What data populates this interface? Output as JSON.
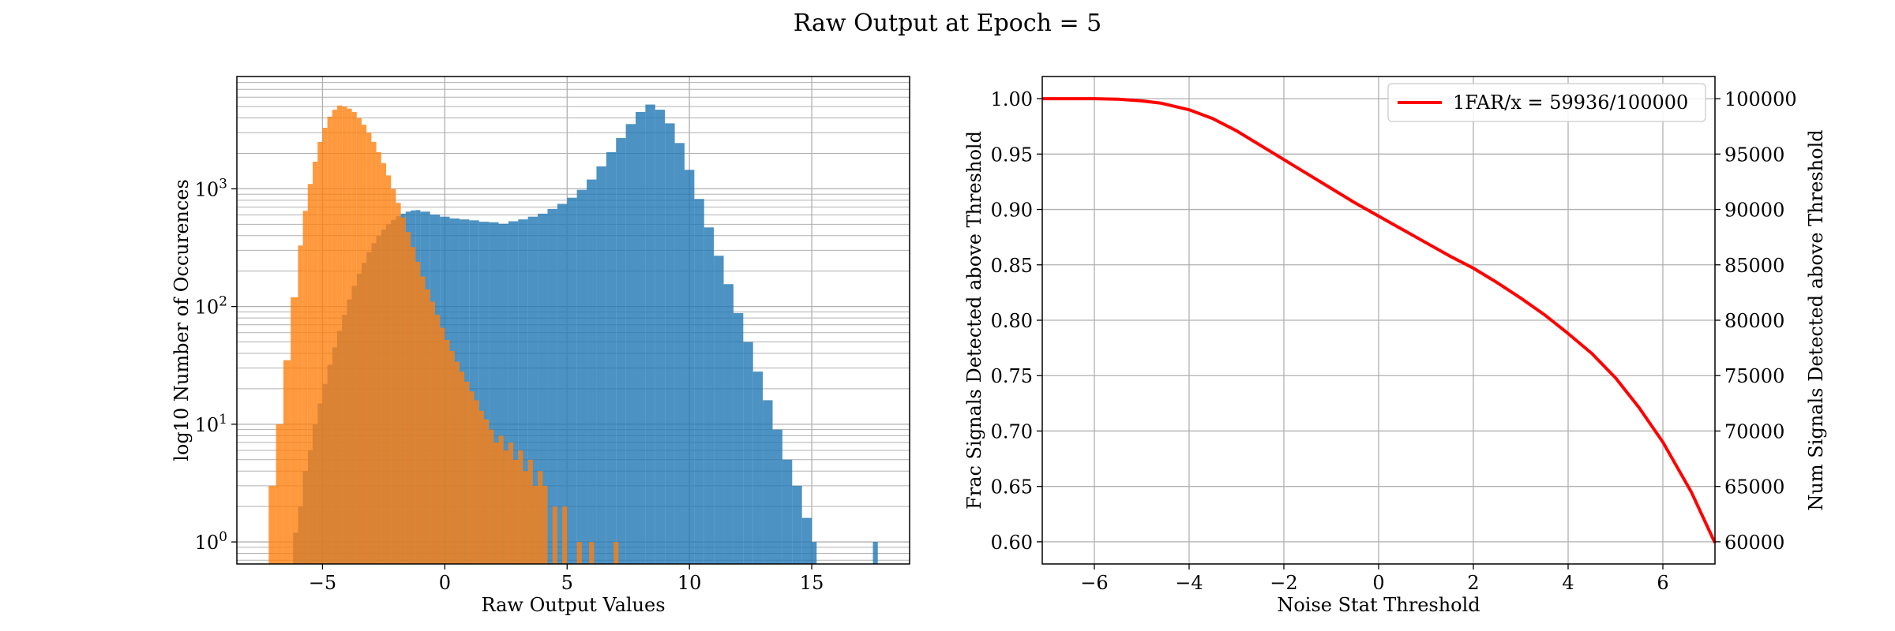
{
  "figure": {
    "title": "Raw Output at Epoch = 5"
  },
  "chart_data": [
    {
      "type": "bar",
      "subtype": "histogram",
      "xlabel": "Raw Output Values",
      "ylabel": "log10 Number of Occurences",
      "xlim": [
        -8.5,
        19
      ],
      "ylim": [
        0.65,
        9000
      ],
      "yscale": "log",
      "grid": true,
      "x_ticks": [
        -5,
        0,
        5,
        10,
        15
      ],
      "x_tick_labels": [
        "−5",
        "0",
        "5",
        "10",
        "15"
      ],
      "y_ticks": [
        1,
        10,
        100,
        1000
      ],
      "y_tick_labels": [
        {
          "base": "10",
          "exp": "0"
        },
        {
          "base": "10",
          "exp": "1"
        },
        {
          "base": "10",
          "exp": "2"
        },
        {
          "base": "10",
          "exp": "3"
        }
      ],
      "colors": {
        "blue": "#1f77b4",
        "orange": "#ff7f0e"
      },
      "series": [
        {
          "color": "blue",
          "bins": [
            {
              "x0": -6.2,
              "x1": -6.0,
              "count": 1.2
            },
            {
              "x0": -6.0,
              "x1": -5.8,
              "count": 2
            },
            {
              "x0": -5.8,
              "x1": -5.6,
              "count": 4
            },
            {
              "x0": -5.6,
              "x1": -5.4,
              "count": 6
            },
            {
              "x0": -5.4,
              "x1": -5.2,
              "count": 10
            },
            {
              "x0": -5.2,
              "x1": -5.0,
              "count": 15
            },
            {
              "x0": -5.0,
              "x1": -4.8,
              "count": 22
            },
            {
              "x0": -4.8,
              "x1": -4.6,
              "count": 32
            },
            {
              "x0": -4.6,
              "x1": -4.4,
              "count": 45
            },
            {
              "x0": -4.4,
              "x1": -4.2,
              "count": 62
            },
            {
              "x0": -4.2,
              "x1": -4.0,
              "count": 85
            },
            {
              "x0": -4.0,
              "x1": -3.8,
              "count": 115
            },
            {
              "x0": -3.8,
              "x1": -3.6,
              "count": 150
            },
            {
              "x0": -3.6,
              "x1": -3.4,
              "count": 190
            },
            {
              "x0": -3.4,
              "x1": -3.2,
              "count": 235
            },
            {
              "x0": -3.2,
              "x1": -3.0,
              "count": 290
            },
            {
              "x0": -3.0,
              "x1": -2.8,
              "count": 345
            },
            {
              "x0": -2.8,
              "x1": -2.6,
              "count": 400
            },
            {
              "x0": -2.6,
              "x1": -2.4,
              "count": 450
            },
            {
              "x0": -2.4,
              "x1": -2.2,
              "count": 500
            },
            {
              "x0": -2.2,
              "x1": -2.0,
              "count": 545
            },
            {
              "x0": -2.0,
              "x1": -1.8,
              "count": 585
            },
            {
              "x0": -1.8,
              "x1": -1.6,
              "count": 615
            },
            {
              "x0": -1.6,
              "x1": -1.4,
              "count": 640
            },
            {
              "x0": -1.4,
              "x1": -1.2,
              "count": 655
            },
            {
              "x0": -1.2,
              "x1": -1.0,
              "count": 660
            },
            {
              "x0": -1.0,
              "x1": -0.6,
              "count": 640
            },
            {
              "x0": -0.6,
              "x1": -0.2,
              "count": 605
            },
            {
              "x0": -0.2,
              "x1": 0.2,
              "count": 580
            },
            {
              "x0": 0.2,
              "x1": 0.6,
              "count": 560
            },
            {
              "x0": 0.6,
              "x1": 1.0,
              "count": 550
            },
            {
              "x0": 1.0,
              "x1": 1.4,
              "count": 540
            },
            {
              "x0": 1.4,
              "x1": 1.8,
              "count": 525
            },
            {
              "x0": 1.8,
              "x1": 2.2,
              "count": 520
            },
            {
              "x0": 2.2,
              "x1": 2.6,
              "count": 505
            },
            {
              "x0": 2.6,
              "x1": 3.0,
              "count": 530
            },
            {
              "x0": 3.0,
              "x1": 3.4,
              "count": 550
            },
            {
              "x0": 3.4,
              "x1": 3.8,
              "count": 580
            },
            {
              "x0": 3.8,
              "x1": 4.2,
              "count": 615
            },
            {
              "x0": 4.2,
              "x1": 4.6,
              "count": 675
            },
            {
              "x0": 4.6,
              "x1": 5.0,
              "count": 745
            },
            {
              "x0": 5.0,
              "x1": 5.4,
              "count": 840
            },
            {
              "x0": 5.4,
              "x1": 5.8,
              "count": 980
            },
            {
              "x0": 5.8,
              "x1": 6.2,
              "count": 1200
            },
            {
              "x0": 6.2,
              "x1": 6.6,
              "count": 1550
            },
            {
              "x0": 6.6,
              "x1": 7.0,
              "count": 2050
            },
            {
              "x0": 7.0,
              "x1": 7.4,
              "count": 2700
            },
            {
              "x0": 7.4,
              "x1": 7.8,
              "count": 3550
            },
            {
              "x0": 7.8,
              "x1": 8.2,
              "count": 4500
            },
            {
              "x0": 8.2,
              "x1": 8.6,
              "count": 5200
            },
            {
              "x0": 8.6,
              "x1": 9.0,
              "count": 4700
            },
            {
              "x0": 9.0,
              "x1": 9.4,
              "count": 3600
            },
            {
              "x0": 9.4,
              "x1": 9.8,
              "count": 2450
            },
            {
              "x0": 9.8,
              "x1": 10.2,
              "count": 1450
            },
            {
              "x0": 10.2,
              "x1": 10.6,
              "count": 820
            },
            {
              "x0": 10.6,
              "x1": 11.0,
              "count": 470
            },
            {
              "x0": 11.0,
              "x1": 11.4,
              "count": 270
            },
            {
              "x0": 11.4,
              "x1": 11.8,
              "count": 155
            },
            {
              "x0": 11.8,
              "x1": 12.2,
              "count": 88
            },
            {
              "x0": 12.2,
              "x1": 12.6,
              "count": 50
            },
            {
              "x0": 12.6,
              "x1": 13.0,
              "count": 28
            },
            {
              "x0": 13.0,
              "x1": 13.4,
              "count": 16
            },
            {
              "x0": 13.4,
              "x1": 13.8,
              "count": 9
            },
            {
              "x0": 13.8,
              "x1": 14.2,
              "count": 5
            },
            {
              "x0": 14.2,
              "x1": 14.6,
              "count": 3
            },
            {
              "x0": 14.6,
              "x1": 15.0,
              "count": 1.6
            },
            {
              "x0": 15.0,
              "x1": 15.2,
              "count": 1
            },
            {
              "x0": 17.5,
              "x1": 17.7,
              "count": 1
            }
          ]
        },
        {
          "color": "orange",
          "bins": [
            {
              "x0": -7.2,
              "x1": -6.9,
              "count": 3
            },
            {
              "x0": -6.9,
              "x1": -6.6,
              "count": 10
            },
            {
              "x0": -6.6,
              "x1": -6.3,
              "count": 35
            },
            {
              "x0": -6.3,
              "x1": -6.0,
              "count": 120
            },
            {
              "x0": -6.0,
              "x1": -5.8,
              "count": 330
            },
            {
              "x0": -5.8,
              "x1": -5.6,
              "count": 650
            },
            {
              "x0": -5.6,
              "x1": -5.4,
              "count": 1100
            },
            {
              "x0": -5.4,
              "x1": -5.2,
              "count": 1700
            },
            {
              "x0": -5.2,
              "x1": -5.0,
              "count": 2500
            },
            {
              "x0": -5.0,
              "x1": -4.8,
              "count": 3300
            },
            {
              "x0": -4.8,
              "x1": -4.6,
              "count": 4100
            },
            {
              "x0": -4.6,
              "x1": -4.4,
              "count": 4700
            },
            {
              "x0": -4.4,
              "x1": -4.2,
              "count": 5100
            },
            {
              "x0": -4.2,
              "x1": -4.0,
              "count": 5000
            },
            {
              "x0": -4.0,
              "x1": -3.8,
              "count": 4800
            },
            {
              "x0": -3.8,
              "x1": -3.6,
              "count": 4500
            },
            {
              "x0": -3.6,
              "x1": -3.4,
              "count": 4000
            },
            {
              "x0": -3.4,
              "x1": -3.2,
              "count": 3500
            },
            {
              "x0": -3.2,
              "x1": -3.0,
              "count": 3000
            },
            {
              "x0": -3.0,
              "x1": -2.8,
              "count": 2500
            },
            {
              "x0": -2.8,
              "x1": -2.6,
              "count": 2050
            },
            {
              "x0": -2.6,
              "x1": -2.4,
              "count": 1650
            },
            {
              "x0": -2.4,
              "x1": -2.2,
              "count": 1300
            },
            {
              "x0": -2.2,
              "x1": -2.0,
              "count": 1000
            },
            {
              "x0": -2.0,
              "x1": -1.8,
              "count": 760
            },
            {
              "x0": -1.8,
              "x1": -1.6,
              "count": 570
            },
            {
              "x0": -1.6,
              "x1": -1.4,
              "count": 430
            },
            {
              "x0": -1.4,
              "x1": -1.2,
              "count": 320
            },
            {
              "x0": -1.2,
              "x1": -1.0,
              "count": 240
            },
            {
              "x0": -1.0,
              "x1": -0.8,
              "count": 180
            },
            {
              "x0": -0.8,
              "x1": -0.6,
              "count": 140
            },
            {
              "x0": -0.6,
              "x1": -0.4,
              "count": 110
            },
            {
              "x0": -0.4,
              "x1": -0.2,
              "count": 85
            },
            {
              "x0": -0.2,
              "x1": 0.0,
              "count": 66
            },
            {
              "x0": 0.0,
              "x1": 0.2,
              "count": 52
            },
            {
              "x0": 0.2,
              "x1": 0.4,
              "count": 42
            },
            {
              "x0": 0.4,
              "x1": 0.6,
              "count": 34
            },
            {
              "x0": 0.6,
              "x1": 0.8,
              "count": 28
            },
            {
              "x0": 0.8,
              "x1": 1.0,
              "count": 23
            },
            {
              "x0": 1.0,
              "x1": 1.2,
              "count": 19
            },
            {
              "x0": 1.2,
              "x1": 1.4,
              "count": 16
            },
            {
              "x0": 1.4,
              "x1": 1.6,
              "count": 13
            },
            {
              "x0": 1.6,
              "x1": 1.8,
              "count": 11
            },
            {
              "x0": 1.8,
              "x1": 2.0,
              "count": 9
            },
            {
              "x0": 2.0,
              "x1": 2.2,
              "count": 7
            },
            {
              "x0": 2.2,
              "x1": 2.4,
              "count": 8
            },
            {
              "x0": 2.4,
              "x1": 2.6,
              "count": 6
            },
            {
              "x0": 2.6,
              "x1": 2.8,
              "count": 7
            },
            {
              "x0": 2.8,
              "x1": 3.0,
              "count": 5
            },
            {
              "x0": 3.0,
              "x1": 3.2,
              "count": 6
            },
            {
              "x0": 3.2,
              "x1": 3.4,
              "count": 4
            },
            {
              "x0": 3.4,
              "x1": 3.6,
              "count": 5
            },
            {
              "x0": 3.6,
              "x1": 3.8,
              "count": 3
            },
            {
              "x0": 3.8,
              "x1": 4.0,
              "count": 4
            },
            {
              "x0": 4.0,
              "x1": 4.2,
              "count": 3
            },
            {
              "x0": 4.4,
              "x1": 4.6,
              "count": 2
            },
            {
              "x0": 4.8,
              "x1": 5.0,
              "count": 2
            },
            {
              "x0": 5.4,
              "x1": 5.6,
              "count": 1
            },
            {
              "x0": 5.9,
              "x1": 6.1,
              "count": 1
            },
            {
              "x0": 6.9,
              "x1": 7.1,
              "count": 1
            }
          ]
        }
      ]
    },
    {
      "type": "line",
      "xlabel": "Noise Stat Threshold",
      "ylabel": "Frac Signals Detected above Threshold",
      "ylabel_right": "Num Signals Detected above Threshold",
      "xlim": [
        -7.1,
        7.1
      ],
      "ylim": [
        0.58,
        1.02
      ],
      "ylim_right": [
        58000,
        102000
      ],
      "grid": true,
      "legend_position": "top-right",
      "x_ticks": [
        -6,
        -4,
        -2,
        0,
        2,
        4,
        6
      ],
      "x_tick_labels": [
        "−6",
        "−4",
        "−2",
        "0",
        "2",
        "4",
        "6"
      ],
      "y_ticks": [
        0.6,
        0.65,
        0.7,
        0.75,
        0.8,
        0.85,
        0.9,
        0.95,
        1.0
      ],
      "y_tick_labels": [
        "0.60",
        "0.65",
        "0.70",
        "0.75",
        "0.80",
        "0.85",
        "0.90",
        "0.95",
        "1.00"
      ],
      "y_ticks_right": [
        60000,
        65000,
        70000,
        75000,
        80000,
        85000,
        90000,
        95000,
        100000
      ],
      "y_tick_labels_right": [
        "60000",
        "65000",
        "70000",
        "75000",
        "80000",
        "85000",
        "90000",
        "95000",
        "100000"
      ],
      "series": [
        {
          "name": "1FAR/x = 59936/100000",
          "color": "#ff0000",
          "x": [
            -7.1,
            -6.0,
            -5.5,
            -5.0,
            -4.6,
            -4.0,
            -3.5,
            -3.0,
            -2.5,
            -2.0,
            -1.5,
            -1.0,
            -0.5,
            0.0,
            0.5,
            1.0,
            1.5,
            2.0,
            2.5,
            3.0,
            3.5,
            4.0,
            4.5,
            5.0,
            5.5,
            6.0,
            6.2,
            6.6,
            7.1
          ],
          "y": [
            1.0,
            1.0,
            0.9995,
            0.998,
            0.996,
            0.99,
            0.982,
            0.971,
            0.958,
            0.945,
            0.932,
            0.919,
            0.906,
            0.894,
            0.882,
            0.87,
            0.858,
            0.847,
            0.834,
            0.82,
            0.805,
            0.788,
            0.77,
            0.748,
            0.721,
            0.69,
            0.675,
            0.645,
            0.599
          ]
        }
      ]
    }
  ]
}
